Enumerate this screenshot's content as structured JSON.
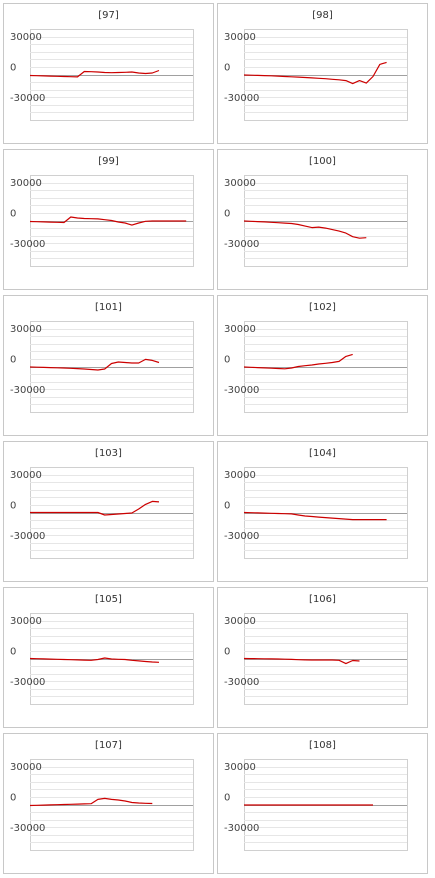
{
  "chart_data": [
    {
      "type": "line",
      "title": "[97]",
      "y_ticks": [
        "30000",
        "0",
        "-30000"
      ],
      "ylim": [
        -45000,
        45000
      ],
      "x_count": 24,
      "series": [
        {
          "color": "#cc0000",
          "values": [
            -1000,
            -1200,
            -1400,
            -1600,
            -1800,
            -2000,
            -2200,
            -2400,
            3000,
            2800,
            2500,
            2000,
            1800,
            2000,
            2200,
            2500,
            1500,
            1000,
            1500,
            4000
          ]
        }
      ]
    },
    {
      "type": "line",
      "title": "[98]",
      "y_ticks": [
        "30000",
        "0",
        "-30000"
      ],
      "ylim": [
        -45000,
        45000
      ],
      "x_count": 24,
      "series": [
        {
          "color": "#cc0000",
          "values": [
            -500,
            -700,
            -900,
            -1100,
            -1300,
            -1600,
            -2000,
            -2300,
            -2600,
            -3000,
            -3400,
            -3800,
            -4200,
            -4700,
            -5200,
            -6000,
            -9000,
            -6000,
            -8500,
            -2000,
            10000,
            12000
          ]
        }
      ]
    },
    {
      "type": "line",
      "title": "[99]",
      "y_ticks": [
        "30000",
        "0",
        "-30000"
      ],
      "ylim": [
        -45000,
        45000
      ],
      "x_count": 24,
      "series": [
        {
          "color": "#cc0000",
          "values": [
            -1000,
            -1200,
            -1400,
            -1600,
            -1800,
            -2000,
            3500,
            2500,
            2000,
            1800,
            1600,
            800,
            0,
            -1500,
            -2500,
            -4500,
            -2500,
            -800,
            -500,
            -500,
            -500,
            -500,
            -500,
            -500
          ]
        }
      ]
    },
    {
      "type": "line",
      "title": "[100]",
      "y_ticks": [
        "30000",
        "0",
        "-30000"
      ],
      "ylim": [
        -45000,
        45000
      ],
      "x_count": 24,
      "series": [
        {
          "color": "#cc0000",
          "values": [
            -500,
            -800,
            -1100,
            -1400,
            -1800,
            -2200,
            -2600,
            -3000,
            -4000,
            -5500,
            -7000,
            -6500,
            -7500,
            -9000,
            -10500,
            -12500,
            -16000,
            -17500,
            -17000
          ]
        }
      ]
    },
    {
      "type": "line",
      "title": "[101]",
      "y_ticks": [
        "30000",
        "0",
        "-30000"
      ],
      "ylim": [
        -45000,
        45000
      ],
      "x_count": 24,
      "series": [
        {
          "color": "#cc0000",
          "values": [
            -500,
            -700,
            -900,
            -1100,
            -1300,
            -1500,
            -1800,
            -2100,
            -2500,
            -3000,
            -3500,
            -2500,
            3000,
            4500,
            4000,
            3500,
            3500,
            7000,
            6000,
            4000
          ]
        }
      ]
    },
    {
      "type": "line",
      "title": "[102]",
      "y_ticks": [
        "30000",
        "0",
        "-30000"
      ],
      "ylim": [
        -45000,
        45000
      ],
      "x_count": 24,
      "series": [
        {
          "color": "#cc0000",
          "values": [
            -500,
            -800,
            -1100,
            -1400,
            -1700,
            -2000,
            -2300,
            -1500,
            0,
            800,
            1500,
            2500,
            3200,
            4000,
            5000,
            10000,
            12000
          ]
        }
      ]
    },
    {
      "type": "line",
      "title": "[103]",
      "y_ticks": [
        "30000",
        "0",
        "-30000"
      ],
      "ylim": [
        -45000,
        45000
      ],
      "x_count": 24,
      "series": [
        {
          "color": "#cc0000",
          "values": [
            0,
            0,
            0,
            0,
            0,
            0,
            0,
            0,
            0,
            0,
            0,
            -2500,
            -2000,
            -1500,
            -1000,
            -500,
            3500,
            8000,
            11000,
            10500
          ]
        }
      ]
    },
    {
      "type": "line",
      "title": "[104]",
      "y_ticks": [
        "30000",
        "0",
        "-30000"
      ],
      "ylim": [
        -45000,
        45000
      ],
      "x_count": 24,
      "series": [
        {
          "color": "#cc0000",
          "values": [
            0,
            -200,
            -400,
            -600,
            -800,
            -1000,
            -1200,
            -1400,
            -2500,
            -3500,
            -4000,
            -4500,
            -5000,
            -5500,
            -6000,
            -6500,
            -7000,
            -7000,
            -7000,
            -7000,
            -7000,
            -7000
          ]
        }
      ]
    },
    {
      "type": "line",
      "title": "[105]",
      "y_ticks": [
        "30000",
        "0",
        "-30000"
      ],
      "ylim": [
        -45000,
        45000
      ],
      "x_count": 24,
      "series": [
        {
          "color": "#cc0000",
          "values": [
            0,
            -200,
            -400,
            -600,
            -800,
            -1000,
            -1200,
            -1400,
            -1600,
            -1800,
            -1000,
            500,
            -500,
            -800,
            -1000,
            -1800,
            -2400,
            -3000,
            -3500,
            -3800
          ]
        }
      ]
    },
    {
      "type": "line",
      "title": "[106]",
      "y_ticks": [
        "30000",
        "0",
        "-30000"
      ],
      "ylim": [
        -45000,
        45000
      ],
      "x_count": 24,
      "series": [
        {
          "color": "#cc0000",
          "values": [
            0,
            -100,
            -200,
            -300,
            -400,
            -500,
            -700,
            -900,
            -1200,
            -1400,
            -1500,
            -1500,
            -1500,
            -1500,
            -1800,
            -5000,
            -2000,
            -2500
          ]
        }
      ]
    },
    {
      "type": "line",
      "title": "[107]",
      "y_ticks": [
        "30000",
        "0",
        "-30000"
      ],
      "ylim": [
        -45000,
        45000
      ],
      "x_count": 24,
      "series": [
        {
          "color": "#cc0000",
          "values": [
            -1000,
            -800,
            -600,
            -400,
            -200,
            0,
            200,
            400,
            600,
            800,
            5000,
            6000,
            5000,
            4500,
            3500,
            2000,
            1500,
            1200,
            1000
          ]
        }
      ]
    },
    {
      "type": "line",
      "title": "[108]",
      "y_ticks": [
        "30000",
        "0",
        "-30000"
      ],
      "ylim": [
        -45000,
        45000
      ],
      "x_count": 24,
      "series": [
        {
          "color": "#cc0000",
          "values": [
            -500,
            -500,
            -500,
            -500,
            -500,
            -500,
            -500,
            -500,
            -500,
            -500,
            -500,
            -500,
            -500,
            -500,
            -500,
            -500,
            -500,
            -500,
            -500,
            -500
          ]
        }
      ]
    }
  ]
}
